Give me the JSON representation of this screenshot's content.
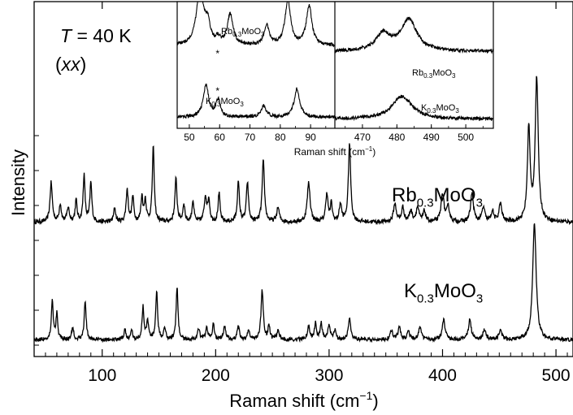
{
  "chart_data": [
    {
      "type": "line",
      "title": "",
      "xlabel": "Raman shift (cm",
      "xlabel_sup": "−1",
      "xlabel_close": ")",
      "ylabel": "Intensity",
      "xlim": [
        40,
        515
      ],
      "xticks": [
        100,
        200,
        300,
        400,
        500
      ],
      "xtick_labels": [
        "100",
        "200",
        "300",
        "400",
        "500"
      ],
      "y_tick_labels_shown": false,
      "grid": false,
      "annotation": {
        "t_symbol": "T",
        "t_value": " = 40 K",
        "pol_open": "(",
        "pol_symbol": "xx",
        "pol_close": ")"
      },
      "series": [
        {
          "label_base": "Rb",
          "label_sub": "0.3",
          "label_mid": "MoO",
          "label_sub2": "3",
          "baseline": 0.55,
          "peaks": [
            [
              55,
              0.55,
              1.2
            ],
            [
              63,
              0.25,
              1.1
            ],
            [
              70,
              0.2,
              1.2
            ],
            [
              77,
              0.3,
              1
            ],
            [
              84,
              0.65,
              1
            ],
            [
              90,
              0.55,
              1
            ],
            [
              111,
              0.2,
              1
            ],
            [
              122,
              0.45,
              1.1
            ],
            [
              127,
              0.35,
              1
            ],
            [
              135,
              0.35,
              1
            ],
            [
              138,
              0.3,
              1
            ],
            [
              145,
              1.05,
              1
            ],
            [
              165,
              0.6,
              1.1
            ],
            [
              172,
              0.25,
              1
            ],
            [
              180,
              0.3,
              1
            ],
            [
              191,
              0.35,
              1.3
            ],
            [
              194,
              0.3,
              1
            ],
            [
              203,
              0.4,
              1
            ],
            [
              220,
              0.55,
              1.1
            ],
            [
              228,
              0.55,
              1.1
            ],
            [
              242,
              0.85,
              1.2
            ],
            [
              255,
              0.2,
              1.3
            ],
            [
              282,
              0.55,
              1.5
            ],
            [
              298,
              0.4,
              1.2
            ],
            [
              302,
              0.25,
              1
            ],
            [
              310,
              0.25,
              1.2
            ],
            [
              318,
              1.1,
              1.2
            ],
            [
              358,
              0.25,
              1.5
            ],
            [
              365,
              0.2,
              1.3
            ],
            [
              372,
              0.15,
              1.5
            ],
            [
              378,
              0.2,
              1.5
            ],
            [
              384,
              0.15,
              1.3
            ],
            [
              400,
              0.4,
              1.5
            ],
            [
              405,
              0.2,
              1.5
            ],
            [
              426,
              0.4,
              1.5
            ],
            [
              436,
              0.2,
              1.5
            ],
            [
              444,
              0.15,
              1.3
            ],
            [
              451,
              0.25,
              1.5
            ],
            [
              476,
              1.3,
              1.4
            ],
            [
              483,
              2.0,
              1.6
            ]
          ]
        },
        {
          "label_base": "K",
          "label_sub": "0.3",
          "label_mid": "MoO",
          "label_sub2": "3",
          "baseline": 0.12,
          "peaks": [
            [
              56,
              0.6,
              1
            ],
            [
              60,
              0.4,
              0.9
            ],
            [
              74,
              0.2,
              1
            ],
            [
              85,
              0.6,
              1
            ],
            [
              120,
              0.15,
              1
            ],
            [
              126,
              0.15,
              1
            ],
            [
              136,
              0.5,
              1
            ],
            [
              140,
              0.3,
              1
            ],
            [
              148,
              0.75,
              1
            ],
            [
              155,
              0.2,
              1
            ],
            [
              166,
              0.8,
              1
            ],
            [
              185,
              0.15,
              1.3
            ],
            [
              192,
              0.2,
              1
            ],
            [
              198,
              0.25,
              1
            ],
            [
              208,
              0.2,
              1.2
            ],
            [
              220,
              0.2,
              1.2
            ],
            [
              229,
              0.15,
              1
            ],
            [
              241,
              0.75,
              1.2
            ],
            [
              247,
              0.2,
              1
            ],
            [
              255,
              0.15,
              1.2
            ],
            [
              282,
              0.2,
              1.3
            ],
            [
              288,
              0.25,
              1
            ],
            [
              293,
              0.25,
              1
            ],
            [
              300,
              0.2,
              1.3
            ],
            [
              305,
              0.15,
              1
            ],
            [
              318,
              0.35,
              1.2
            ],
            [
              355,
              0.15,
              1.3
            ],
            [
              362,
              0.2,
              1.3
            ],
            [
              370,
              0.12,
              1.3
            ],
            [
              380,
              0.2,
              1.5
            ],
            [
              401,
              0.3,
              1.5
            ],
            [
              424,
              0.3,
              1.5
            ],
            [
              437,
              0.15,
              1.5
            ],
            [
              451,
              0.15,
              1.5
            ],
            [
              481,
              1.8,
              1.8
            ]
          ]
        }
      ]
    },
    {
      "type": "line",
      "title": "",
      "xlabel": "Raman shift (cm",
      "xlabel_sup": "−1",
      "xlabel_close": ")",
      "ylabel": "",
      "grid": false,
      "panels": [
        {
          "xlim": [
            46,
            98
          ],
          "xticks": [
            50,
            60,
            70,
            80,
            90
          ],
          "xtick_labels": [
            "50",
            "60",
            "70",
            "80",
            "90"
          ],
          "series": [
            {
              "label_base": "Rb",
              "label_sub": "0.3",
              "label_mid": "MoO",
              "label_sub2": "3",
              "asterisk": "*",
              "asterisk_x": 59.5,
              "baseline": 0.55,
              "peaks": [
                [
                  53.5,
                  0.95,
                  1.4
                ],
                [
                  56,
                  0.35,
                  1
                ],
                [
                  59.5,
                  0.1,
                  0.8
                ],
                [
                  63.5,
                  0.55,
                  1.1
                ],
                [
                  75.5,
                  0.35,
                  1
                ],
                [
                  82.5,
                  0.8,
                  1.1
                ],
                [
                  89.5,
                  0.7,
                  1.1
                ]
              ]
            },
            {
              "label_base": "K",
              "label_sub": "0.3",
              "label_mid": "MoO",
              "label_sub2": "3",
              "asterisk": "*",
              "asterisk_x": 59.5,
              "baseline": 0.05,
              "peaks": [
                [
                  55.5,
                  0.55,
                  1.1
                ],
                [
                  59.5,
                  0.3,
                  0.9
                ],
                [
                  74.5,
                  0.2,
                  1
                ],
                [
                  85.5,
                  0.5,
                  1.1
                ]
              ]
            }
          ]
        },
        {
          "xlim": [
            462,
            508
          ],
          "xticks": [
            470,
            480,
            490,
            500
          ],
          "xtick_labels": [
            "470",
            "480",
            "490",
            "500"
          ],
          "series": [
            {
              "label_base": "Rb",
              "label_sub": "0.3",
              "label_mid": "MoO",
              "label_sub2": "3",
              "baseline": 0.45,
              "peaks": [
                [
                  476,
                  0.3,
                  2.5
                ],
                [
                  483.5,
                  0.55,
                  2.8
                ]
              ]
            },
            {
              "label_base": "K",
              "label_sub": "0.3",
              "label_mid": "MoO",
              "label_sub2": "3",
              "baseline": 0.02,
              "peaks": [
                [
                  481.5,
                  0.4,
                  3.5
                ]
              ]
            }
          ]
        }
      ]
    }
  ]
}
